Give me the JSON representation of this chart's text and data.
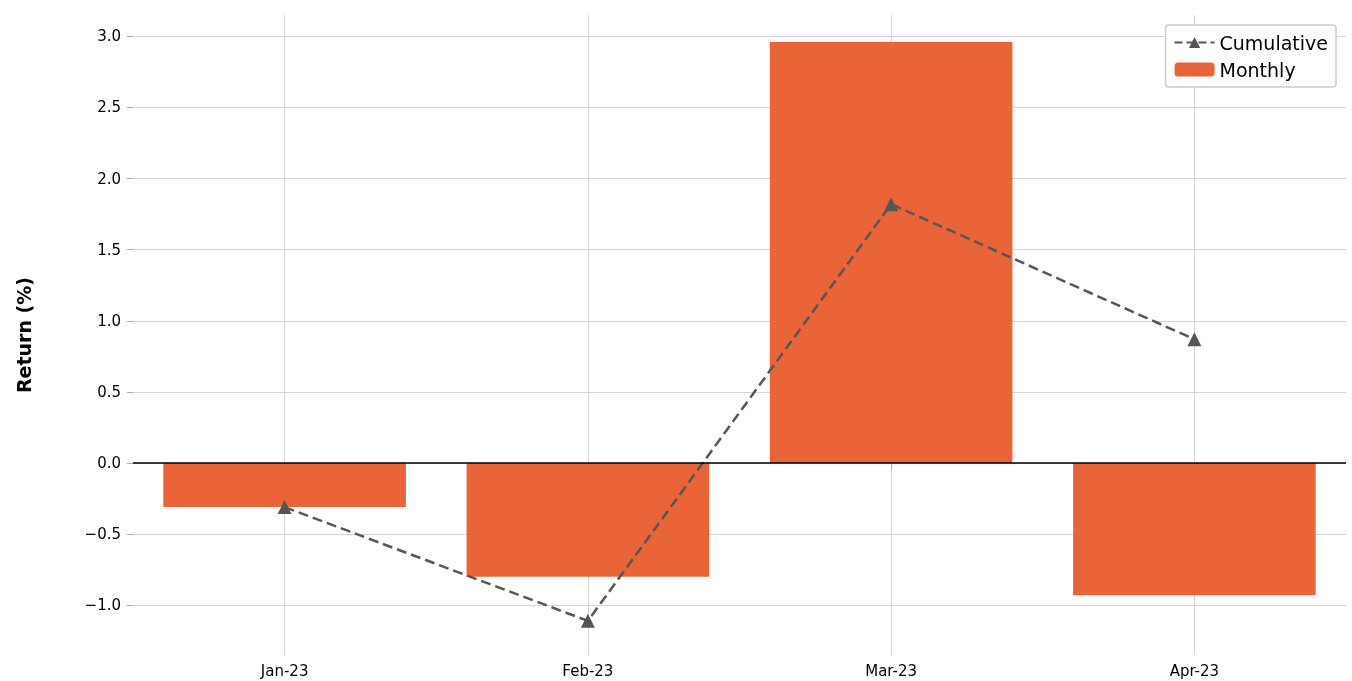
{
  "chart_data": {
    "type": "bar",
    "ylabel": "Return (%)",
    "categories": [
      "Jan-23",
      "Feb-23",
      "Mar-23",
      "Apr-23"
    ],
    "series": [
      {
        "name": "Monthly",
        "color": "#ea6439",
        "values": [
          -0.31,
          -0.8,
          2.96,
          -0.93
        ]
      },
      {
        "name": "Cumulative",
        "type": "line",
        "color": "#555555",
        "marker": "triangle",
        "line_style": "dashed",
        "values": [
          -0.31,
          -1.11,
          1.82,
          0.87
        ]
      }
    ],
    "ylim": [
      -1.35,
      3.15
    ],
    "yticks": [
      {
        "value": -1,
        "label": "−1.0"
      },
      {
        "value": -0.5,
        "label": "−0.5"
      },
      {
        "value": 0,
        "label": "0.0"
      },
      {
        "value": 0.5,
        "label": "0.5"
      },
      {
        "value": 1,
        "label": "1.0"
      },
      {
        "value": 1.5,
        "label": "1.5"
      },
      {
        "value": 2,
        "label": "2.0"
      },
      {
        "value": 2.5,
        "label": "2.5"
      },
      {
        "value": 3,
        "label": "3.0"
      }
    ],
    "ref_lines": [
      {
        "axis": "y",
        "value": 0,
        "color": "#000000"
      }
    ],
    "grid": true,
    "legend": "top right"
  }
}
